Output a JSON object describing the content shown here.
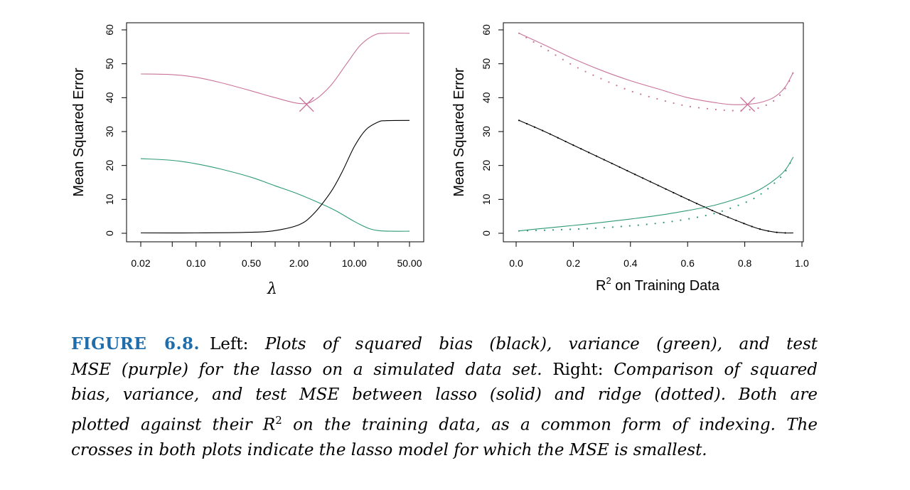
{
  "figure": {
    "caption": {
      "label": "FIGURE 6.8.",
      "lines": [
        [
          {
            "t": "Left: ",
            "i": false
          },
          {
            "t": "Plots of squared bias (black), variance (green), and test",
            "i": true
          }
        ],
        [
          {
            "t": "MSE (purple) for the lasso on a simulated data set.",
            "i": true
          },
          {
            "t": " Right: ",
            "i": false
          },
          {
            "t": "Comparison of squared",
            "i": true
          }
        ],
        [
          {
            "t": "bias, variance, and test MSE between lasso (solid) and ridge (dotted). Both are",
            "i": true
          }
        ],
        [
          {
            "t": "plotted against their R",
            "i": true
          },
          {
            "t": "2",
            "i": true,
            "sup": true
          },
          {
            "t": " on the training data, as a common form of indexing. The",
            "i": true
          }
        ],
        [
          {
            "t": "crosses in both plots indicate the lasso model for which the MSE is smallest.",
            "i": true
          }
        ]
      ]
    }
  },
  "colors": {
    "bias": "#000000",
    "variance": "#2e9a76",
    "mse": "#c9739a",
    "caption_label": "#1f6eab"
  },
  "chart_data": [
    {
      "type": "line",
      "ylabel": "Mean Squared Error",
      "xlabel": "λ",
      "x_scale": "log",
      "x_ticks": [
        "0.02",
        "0.10",
        "0.50",
        "2.00",
        "10.00",
        "50.00"
      ],
      "y_ticks": [
        "0",
        "10",
        "20",
        "30",
        "40",
        "50",
        "60"
      ],
      "ylim": [
        0,
        60
      ],
      "xlim": [
        0.02,
        50
      ],
      "series": [
        {
          "color_key": "mse",
          "style": "solid",
          "x": [
            0.02,
            0.05,
            0.1,
            0.2,
            0.5,
            1.0,
            2.0,
            3.0,
            5.0,
            8.0,
            12.0,
            18.0,
            25.0,
            50.0
          ],
          "y": [
            47.0,
            46.8,
            46.0,
            44.5,
            42.0,
            40.0,
            38.3,
            39.0,
            43.5,
            50.0,
            55.5,
            58.5,
            59.0,
            59.0
          ]
        },
        {
          "color_key": "variance",
          "style": "solid",
          "x": [
            0.02,
            0.05,
            0.1,
            0.2,
            0.5,
            1.0,
            2.0,
            4.0,
            6.0,
            10.0,
            15.0,
            20.0,
            30.0,
            50.0
          ],
          "y": [
            22.0,
            21.5,
            20.5,
            19.0,
            16.5,
            14.0,
            11.5,
            8.5,
            6.5,
            3.5,
            1.5,
            0.8,
            0.6,
            0.6
          ]
        },
        {
          "color_key": "bias",
          "style": "solid",
          "x": [
            0.02,
            0.1,
            0.5,
            1.0,
            2.0,
            3.0,
            5.0,
            7.0,
            10.0,
            14.0,
            20.0,
            25.0,
            50.0
          ],
          "y": [
            0.1,
            0.1,
            0.3,
            0.8,
            2.5,
            5.5,
            12.0,
            18.0,
            25.5,
            30.5,
            32.8,
            33.2,
            33.3
          ]
        }
      ],
      "marker": {
        "x": 2.5,
        "y": 38.0,
        "shape": "cross",
        "color_key": "mse"
      }
    },
    {
      "type": "line",
      "ylabel": "Mean Squared Error",
      "xlabel": "R",
      "xlabel_sup": "2",
      "xlabel_rest": " on Training Data",
      "x_ticks": [
        "0.0",
        "0.2",
        "0.4",
        "0.6",
        "0.8",
        "1.0"
      ],
      "y_ticks": [
        "0",
        "10",
        "20",
        "30",
        "40",
        "50",
        "60"
      ],
      "xlim": [
        0.0,
        1.0
      ],
      "ylim": [
        0,
        60
      ],
      "series": [
        {
          "color_key": "mse",
          "style": "solid",
          "x": [
            0.01,
            0.1,
            0.2,
            0.3,
            0.4,
            0.5,
            0.6,
            0.7,
            0.75,
            0.8,
            0.85,
            0.9,
            0.94,
            0.97
          ],
          "y": [
            59.0,
            55.5,
            51.5,
            48.0,
            45.0,
            42.5,
            40.0,
            38.5,
            38.0,
            38.0,
            38.5,
            40.0,
            43.0,
            47.5
          ]
        },
        {
          "color_key": "mse",
          "style": "dotted",
          "x": [
            0.01,
            0.1,
            0.2,
            0.3,
            0.4,
            0.5,
            0.6,
            0.7,
            0.75,
            0.8,
            0.85,
            0.9,
            0.94,
            0.97
          ],
          "y": [
            59.0,
            54.5,
            49.5,
            45.5,
            42.0,
            39.5,
            37.5,
            36.5,
            36.2,
            36.3,
            37.0,
            39.0,
            42.5,
            47.5
          ]
        },
        {
          "color_key": "bias",
          "style": "solid",
          "x": [
            0.01,
            0.1,
            0.2,
            0.3,
            0.4,
            0.5,
            0.6,
            0.7,
            0.8,
            0.85,
            0.9,
            0.94,
            0.97
          ],
          "y": [
            33.3,
            30.0,
            26.0,
            22.0,
            18.0,
            14.0,
            10.0,
            6.2,
            2.8,
            1.3,
            0.4,
            0.1,
            0.1
          ]
        },
        {
          "color_key": "bias",
          "style": "dotted",
          "x": [
            0.01,
            0.1,
            0.2,
            0.3,
            0.4,
            0.5,
            0.6,
            0.7,
            0.8,
            0.85,
            0.9,
            0.94,
            0.97
          ],
          "y": [
            33.3,
            30.0,
            26.0,
            22.0,
            18.0,
            14.0,
            10.0,
            6.2,
            2.8,
            1.3,
            0.4,
            0.1,
            0.1
          ]
        },
        {
          "color_key": "variance",
          "style": "solid",
          "x": [
            0.01,
            0.1,
            0.2,
            0.3,
            0.4,
            0.5,
            0.6,
            0.7,
            0.8,
            0.85,
            0.9,
            0.94,
            0.97
          ],
          "y": [
            0.7,
            1.5,
            2.3,
            3.2,
            4.2,
            5.3,
            6.7,
            8.4,
            11.0,
            12.8,
            15.5,
            18.5,
            22.5
          ]
        },
        {
          "color_key": "variance",
          "style": "dotted",
          "x": [
            0.01,
            0.1,
            0.2,
            0.3,
            0.4,
            0.5,
            0.6,
            0.7,
            0.8,
            0.85,
            0.9,
            0.94,
            0.97
          ],
          "y": [
            0.7,
            0.9,
            1.2,
            1.6,
            2.2,
            3.0,
            4.2,
            6.0,
            9.0,
            11.2,
            14.5,
            18.0,
            22.5
          ]
        }
      ],
      "marker": {
        "x": 0.81,
        "y": 38.0,
        "shape": "cross",
        "color_key": "mse"
      }
    }
  ]
}
